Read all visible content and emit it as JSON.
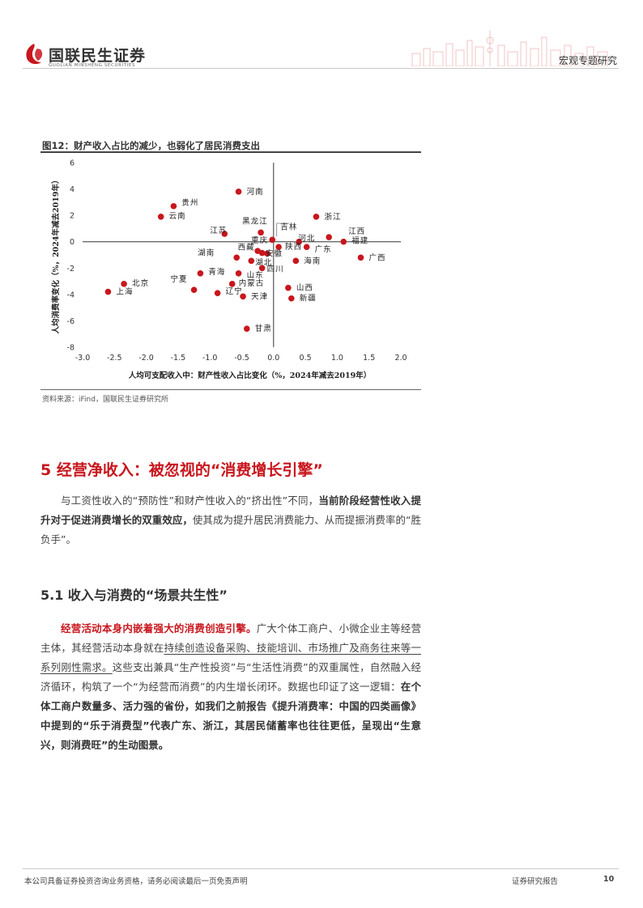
{
  "header": {
    "logo_cn": "国联民生证券",
    "logo_en": "GUOLIAN MINSHENG SECURITIES",
    "report_type": "宏观专题研究"
  },
  "figure": {
    "title": "图12：财产收入占比的减少，也弱化了居民消费支出",
    "source": "资料来源：iFind，国联民生证券研究所"
  },
  "chart_data": {
    "type": "scatter",
    "xlabel": "人均可支配收入中：财产性收入占比变化（%，2024年减去2019年）",
    "ylabel": "人均消费率变化（%，2024年减去2019年）",
    "xlim": [
      -3.0,
      2.0
    ],
    "ylim": [
      -8,
      6
    ],
    "x_ticks": [
      "-3.0",
      "-2.5",
      "-2.0",
      "-1.5",
      "-1.0",
      "-0.5",
      "0.0",
      "0.5",
      "1.0",
      "1.5",
      "2.0"
    ],
    "y_ticks": [
      "6",
      "4",
      "2",
      "0",
      "-2",
      "-4",
      "-6",
      "-8"
    ],
    "marker_color": "#c8161d",
    "points": [
      {
        "label": "河南",
        "x": -0.55,
        "y": 3.8
      },
      {
        "label": "贵州",
        "x": -1.57,
        "y": 2.7
      },
      {
        "label": "云南",
        "x": -1.77,
        "y": 1.9
      },
      {
        "label": "浙江",
        "x": 0.67,
        "y": 1.9
      },
      {
        "label": "黑龙江",
        "x": -0.2,
        "y": 0.7
      },
      {
        "label": "吉林",
        "x": -0.02,
        "y": 0.15
      },
      {
        "label": "江苏",
        "x": -0.77,
        "y": 0.6
      },
      {
        "label": "江西",
        "x": 0.87,
        "y": 0.35
      },
      {
        "label": "福建",
        "x": 1.1,
        "y": 0.0
      },
      {
        "label": "河北",
        "x": 0.4,
        "y": 0.0
      },
      {
        "label": "陕西",
        "x": 0.08,
        "y": -0.4
      },
      {
        "label": "广东",
        "x": 0.52,
        "y": -0.4
      },
      {
        "label": "重庆",
        "x": -0.25,
        "y": -0.7
      },
      {
        "label": "西藏",
        "x": -0.18,
        "y": -0.85
      },
      {
        "label": "安徽",
        "x": -0.1,
        "y": -0.9
      },
      {
        "label": "广西",
        "x": 1.37,
        "y": -1.2
      },
      {
        "label": "湖南",
        "x": -0.58,
        "y": -1.2
      },
      {
        "label": "湖北",
        "x": -0.35,
        "y": -1.45
      },
      {
        "label": "海南",
        "x": 0.35,
        "y": -1.45
      },
      {
        "label": "四川",
        "x": -0.18,
        "y": -2.0
      },
      {
        "label": "青海",
        "x": -1.15,
        "y": -2.4
      },
      {
        "label": "山东",
        "x": -0.55,
        "y": -2.4
      },
      {
        "label": "宁夏",
        "x": -1.25,
        "y": -3.65
      },
      {
        "label": "北京",
        "x": -2.35,
        "y": -3.2
      },
      {
        "label": "上海",
        "x": -2.6,
        "y": -3.8
      },
      {
        "label": "内蒙古",
        "x": -0.65,
        "y": -3.2
      },
      {
        "label": "辽宁",
        "x": -0.88,
        "y": -3.9
      },
      {
        "label": "天津",
        "x": -0.48,
        "y": -4.15
      },
      {
        "label": "山西",
        "x": 0.23,
        "y": -3.5
      },
      {
        "label": "新疆",
        "x": 0.28,
        "y": -4.3
      },
      {
        "label": "甘肃",
        "x": -0.42,
        "y": -6.6
      }
    ]
  },
  "section5": {
    "title": "5 经营净收入：被忽视的“消费增长引擎”",
    "p1_a": "与工资性收入的“预防性”和财产性收入的“挤出性”不同，",
    "p1_b": "当前阶段经营性收入提升对于促进消费增长的双重效应，",
    "p1_c": "使其成为提升居民消费能力、从而提振消费率的“胜负手”。"
  },
  "section51": {
    "title": "5.1  收入与消费的“场景共生性”",
    "p2_a": "经营活动本身内嵌着强大的消费创造引擎。",
    "p2_b": "广大个体工商户、小微企业主等经营主体，其经营活动本身就在",
    "p2_c": "持续创造设备采购、技能培训、市场推广及商务往来等一系列刚性需求。",
    "p2_d": "这些支出兼具“生产性投资”与“生活性消费”的双重属性，自然融入经济循环，构筑了一个“为经营而消费”的内生增长闭环。数据也印证了这一逻辑：",
    "p2_e": "在个体工商户数量多、活力强的省份，如我们之前报告《提升消费率：中国的四类画像》中提到的“乐于消费型”代表广东、浙江，其居民储蓄率也往往更低，呈现出“生意兴，则消费旺”的生动图景。"
  },
  "footer": {
    "disclaimer": "本公司具备证券投资咨询业务资格，请务必阅读最后一页免责声明",
    "report_label": "证券研究报告",
    "page": "10"
  }
}
